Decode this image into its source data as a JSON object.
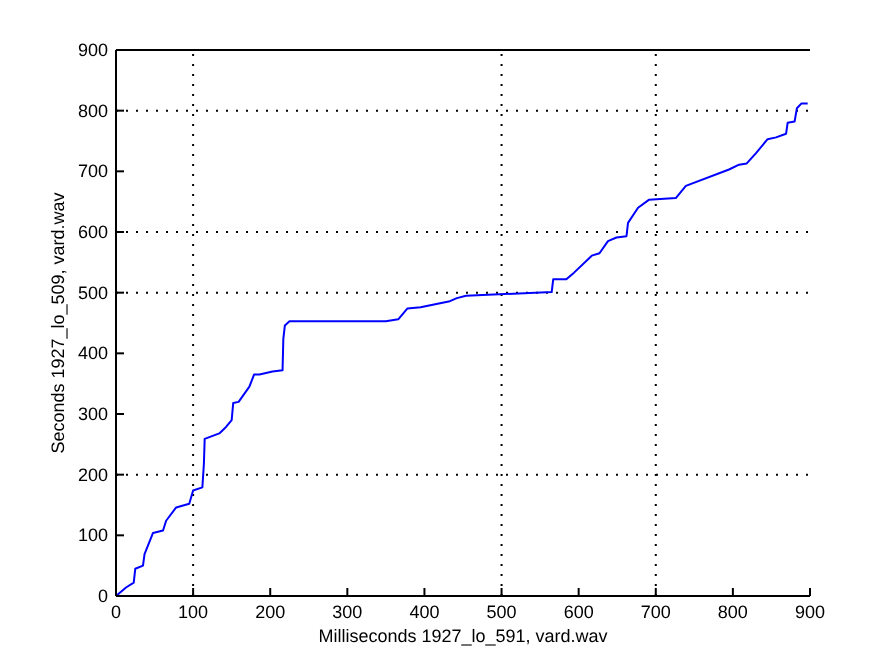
{
  "chart_data": {
    "type": "line",
    "xlabel": "Milliseconds 1927_lo_591, vard.wav",
    "ylabel": "Seconds 1927_lo_509, vard.wav",
    "xlim": [
      0,
      900
    ],
    "ylim": [
      0,
      900
    ],
    "xticks": [
      0,
      100,
      200,
      300,
      400,
      500,
      600,
      700,
      800,
      900
    ],
    "yticks": [
      0,
      100,
      200,
      300,
      400,
      500,
      600,
      700,
      800,
      900
    ],
    "grid": false,
    "line_style": "solid",
    "marker": "none",
    "ref_lines": [
      {
        "axis": "x",
        "value": 100,
        "line_style": "dotted",
        "color": "#000000"
      },
      {
        "axis": "x",
        "value": 500,
        "line_style": "dotted",
        "color": "#000000"
      },
      {
        "axis": "x",
        "value": 700,
        "line_style": "dotted",
        "color": "#000000"
      },
      {
        "axis": "y",
        "value": 200,
        "line_style": "dotted",
        "color": "#000000"
      },
      {
        "axis": "y",
        "value": 500,
        "line_style": "dotted",
        "color": "#000000"
      },
      {
        "axis": "y",
        "value": 600,
        "line_style": "dotted",
        "color": "#000000"
      },
      {
        "axis": "y",
        "value": 800,
        "line_style": "dotted",
        "color": "#000000"
      }
    ],
    "series": [
      {
        "color": "#0000ff",
        "x": [
          0,
          13,
          23,
          25,
          35,
          37,
          48,
          61,
          65,
          78,
          95,
          100,
          112,
          114,
          115,
          134,
          143,
          150,
          152,
          159,
          173,
          179,
          186,
          203,
          216,
          217,
          219,
          225,
          238,
          350,
          366,
          378,
          395,
          433,
          442,
          454,
          565,
          567,
          584,
          594,
          617,
          627,
          638,
          649,
          662,
          664,
          677,
          691,
          726,
          739,
          795,
          808,
          818,
          830,
          845,
          856,
          869,
          871,
          880,
          883,
          889,
          897
        ],
        "values": [
          0,
          14,
          22,
          45,
          50,
          69,
          104,
          108,
          124,
          146,
          152,
          174,
          179,
          218,
          259,
          268,
          279,
          290,
          318,
          320,
          345,
          365,
          365,
          370,
          372,
          424,
          446,
          453,
          453,
          453,
          456,
          474,
          476,
          486,
          491,
          495,
          501,
          522,
          522,
          533,
          561,
          565,
          585,
          591,
          593,
          615,
          640,
          653,
          656,
          676,
          703,
          711,
          713,
          730,
          753,
          756,
          762,
          780,
          782,
          804,
          812,
          812
        ]
      }
    ]
  }
}
